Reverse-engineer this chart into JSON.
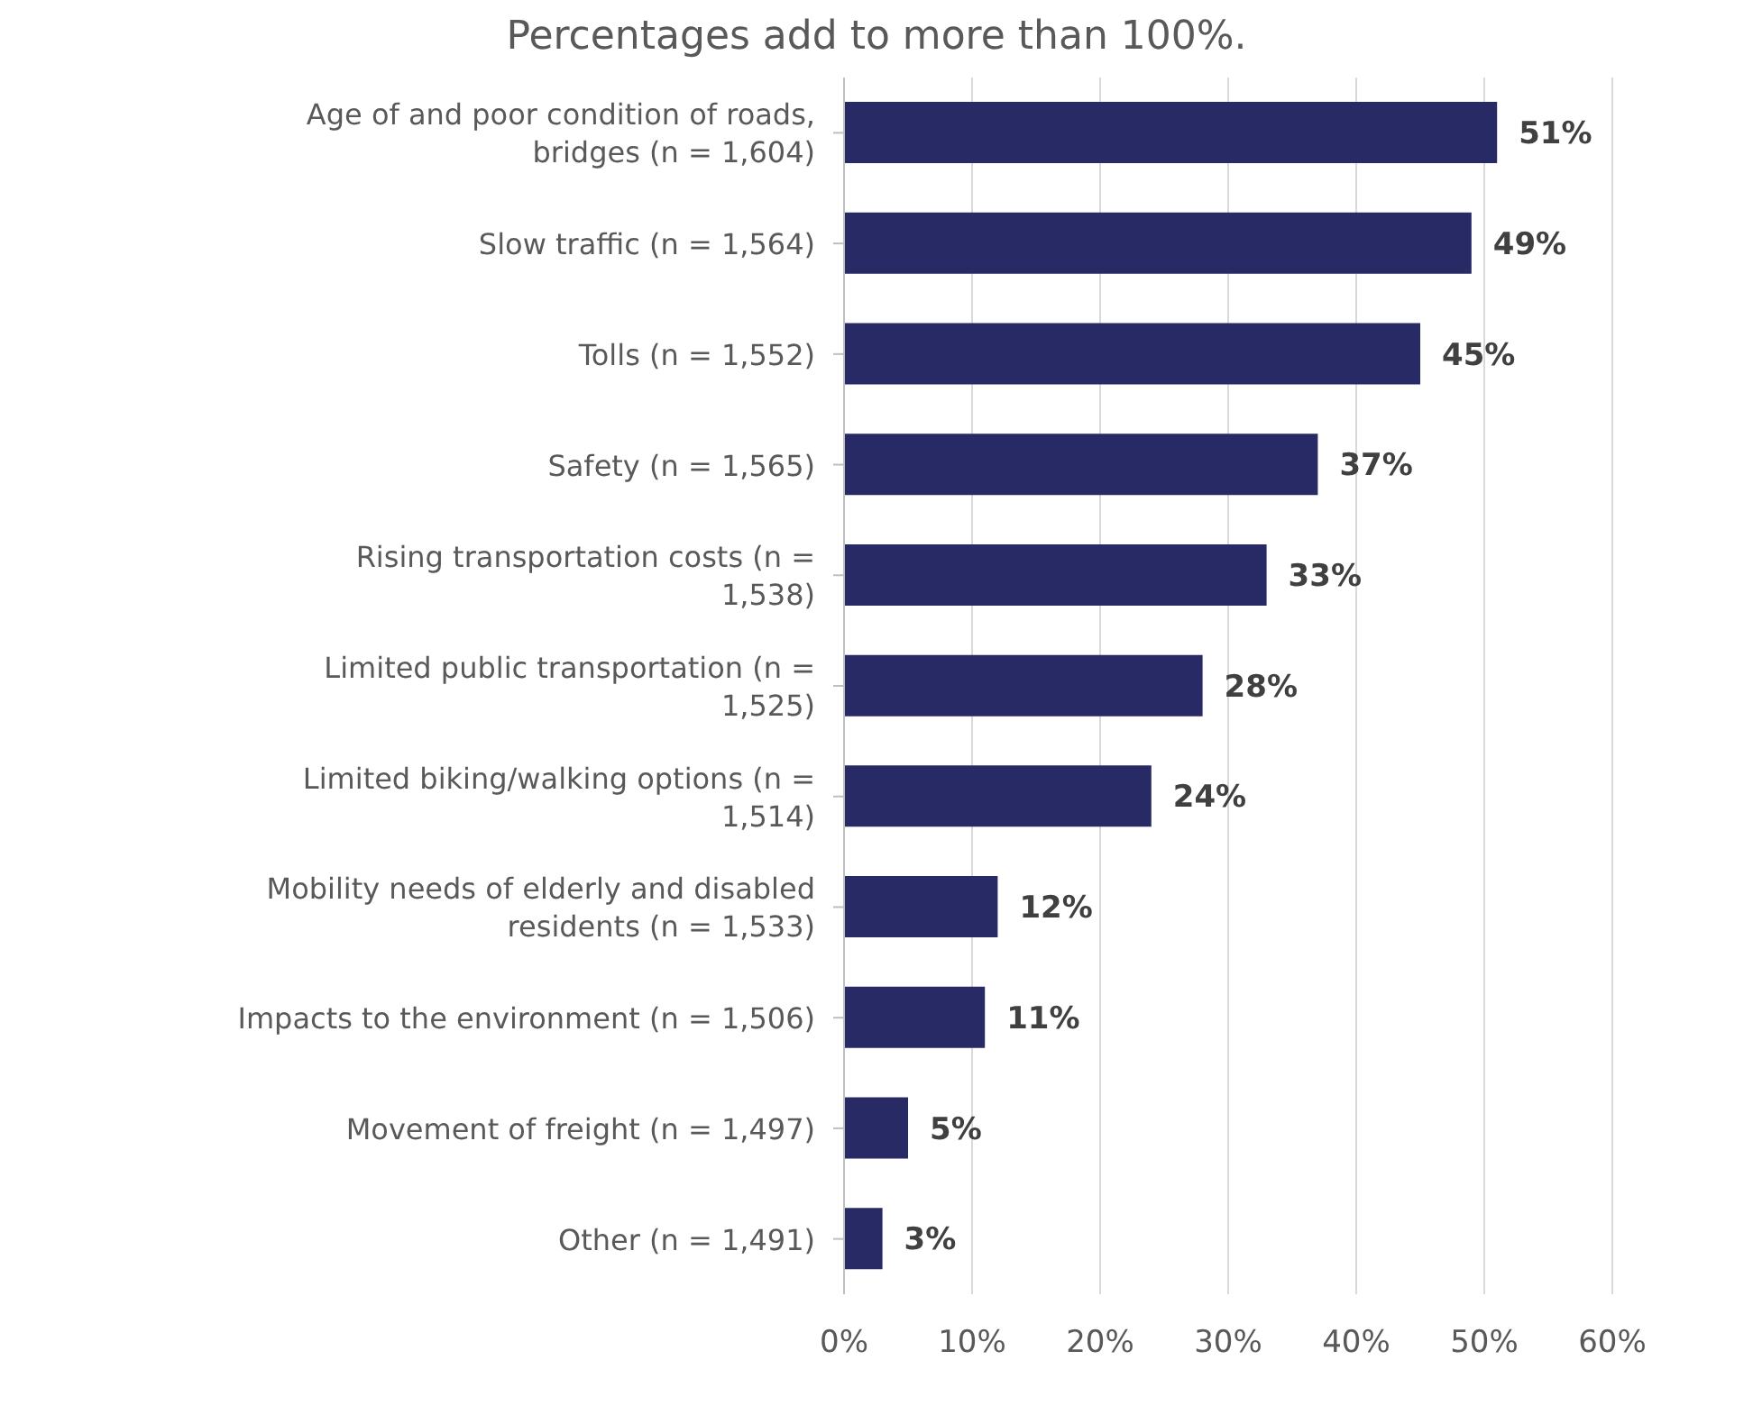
{
  "chart_data": {
    "type": "bar",
    "orientation": "horizontal",
    "subtitle": "Percentages add to more than 100%.",
    "categories": [
      "Age of and poor condition of roads, bridges (n = 1,604)",
      "Slow traffic (n = 1,564)",
      "Tolls (n = 1,552)",
      "Safety (n = 1,565)",
      "Rising transportation costs (n = 1,538)",
      "Limited public transportation (n = 1,525)",
      "Limited biking/walking options (n = 1,514)",
      "Mobility needs of elderly and disabled residents (n = 1,533)",
      "Impacts to the environment (n = 1,506)",
      "Movement of freight (n = 1,497)",
      "Other (n = 1,491)"
    ],
    "values": [
      51,
      49,
      45,
      37,
      33,
      28,
      24,
      12,
      11,
      5,
      3
    ],
    "value_labels": [
      "51%",
      "49%",
      "45%",
      "37%",
      "33%",
      "28%",
      "24%",
      "12%",
      "11%",
      "5%",
      "3%"
    ],
    "color": "#282a66",
    "xlim": [
      0,
      60
    ],
    "xticks": [
      {
        "value": 0,
        "label": "0%"
      },
      {
        "value": 10,
        "label": "10%"
      },
      {
        "value": 20,
        "label": "20%"
      },
      {
        "value": 30,
        "label": "30%"
      },
      {
        "value": 40,
        "label": "40%"
      },
      {
        "value": 50,
        "label": "50%"
      },
      {
        "value": 60,
        "label": "60%"
      }
    ],
    "grid": "x"
  }
}
